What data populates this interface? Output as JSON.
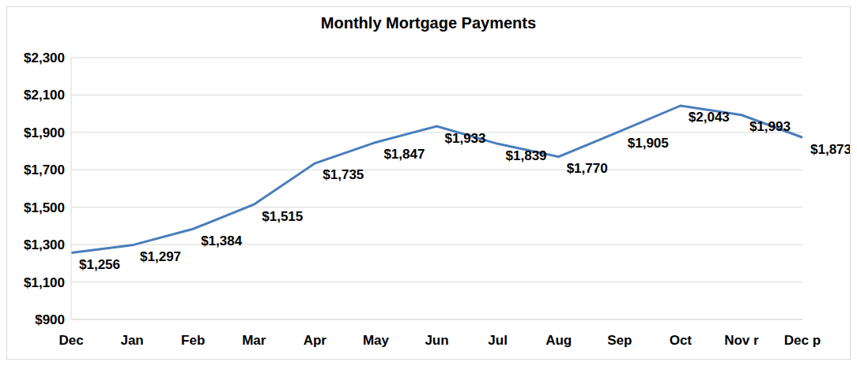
{
  "chart_data": {
    "type": "line",
    "title": "Monthly Mortgage Payments",
    "categories": [
      "Dec",
      "Jan",
      "Feb",
      "Mar",
      "Apr",
      "May",
      "Jun",
      "Jul",
      "Aug",
      "Sep",
      "Oct",
      "Nov r",
      "Dec p"
    ],
    "values": [
      1256,
      1297,
      1384,
      1515,
      1735,
      1847,
      1933,
      1839,
      1770,
      1905,
      2043,
      1993,
      1873
    ],
    "value_labels": [
      "$1,256",
      "$1,297",
      "$1,384",
      "$1,515",
      "$1,735",
      "$1,847",
      "$1,933",
      "$1,839",
      "$1,770",
      "$1,905",
      "$2,043",
      "$1,993",
      "$1,873"
    ],
    "color": "#4a7ebb",
    "ylim": [
      900,
      2300
    ],
    "yticks": [
      {
        "value": 900,
        "label": "$900"
      },
      {
        "value": 1100,
        "label": "$1,100"
      },
      {
        "value": 1300,
        "label": "$1,300"
      },
      {
        "value": 1500,
        "label": "$1,500"
      },
      {
        "value": 1700,
        "label": "$1,700"
      },
      {
        "value": 1900,
        "label": "$1,900"
      },
      {
        "value": 2100,
        "label": "$2,100"
      },
      {
        "value": 2300,
        "label": "$2,300"
      }
    ],
    "grid": true,
    "data_labels": true
  }
}
